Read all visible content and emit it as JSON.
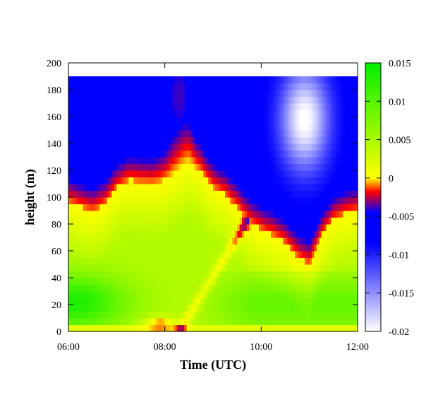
{
  "chart_data": {
    "type": "heatmap",
    "title": "",
    "xlabel": "Time (UTC)",
    "ylabel": "height (m)",
    "xlim": [
      "06:00",
      "12:00"
    ],
    "ylim": [
      0,
      200
    ],
    "x_ticks": [
      "06:00",
      "08:00",
      "10:00",
      "12:00"
    ],
    "y_ticks": [
      "0",
      "20",
      "40",
      "60",
      "80",
      "100",
      "120",
      "140",
      "160",
      "180",
      "200"
    ],
    "data_height_max": 190,
    "colorbar": {
      "range": [
        -0.02,
        0.015
      ],
      "ticks": [
        "0.015",
        "0.01",
        "0.005",
        "0",
        "-0.005",
        "-0.01",
        "-0.015",
        "-0.02"
      ],
      "colors": {
        "min": "#ffffff",
        "low": "#0000ff",
        "neg_small": "#ff0000",
        "zero": "#ffff00",
        "max": "#00ee00"
      }
    },
    "zero_contour_height_m": [
      {
        "t": 6.0,
        "h": 97
      },
      {
        "t": 6.25,
        "h": 93
      },
      {
        "t": 6.5,
        "h": 90
      },
      {
        "t": 6.75,
        "h": 95
      },
      {
        "t": 7.0,
        "h": 107
      },
      {
        "t": 7.25,
        "h": 113
      },
      {
        "t": 7.5,
        "h": 112
      },
      {
        "t": 7.75,
        "h": 111
      },
      {
        "t": 8.0,
        "h": 113
      },
      {
        "t": 8.25,
        "h": 119
      },
      {
        "t": 8.5,
        "h": 126
      },
      {
        "t": 8.75,
        "h": 119
      },
      {
        "t": 9.0,
        "h": 108
      },
      {
        "t": 9.25,
        "h": 102
      },
      {
        "t": 9.5,
        "h": 93
      },
      {
        "t": 9.75,
        "h": 82
      },
      {
        "t": 10.0,
        "h": 76
      },
      {
        "t": 10.25,
        "h": 72
      },
      {
        "t": 10.5,
        "h": 66
      },
      {
        "t": 10.75,
        "h": 56
      },
      {
        "t": 11.0,
        "h": 50
      },
      {
        "t": 11.25,
        "h": 72
      },
      {
        "t": 11.5,
        "h": 84
      },
      {
        "t": 11.75,
        "h": 88
      },
      {
        "t": 12.0,
        "h": 90
      }
    ],
    "white_core": {
      "t": 10.9,
      "h": 158
    }
  }
}
